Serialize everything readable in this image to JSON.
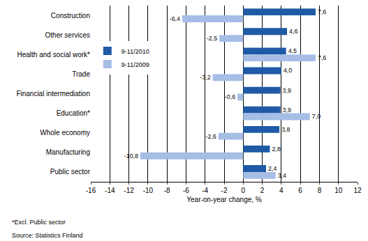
{
  "chart_data": {
    "type": "bar",
    "orientation": "horizontal",
    "categories": [
      "Construction",
      "Other services",
      "Health and social work*",
      "Trade",
      "Financial intermediation",
      "Education*",
      "Whole economy",
      "Manufacturing",
      "Public sector"
    ],
    "series": [
      {
        "name": "9-11/2010",
        "color": "#1f5aa6",
        "values": [
          7.6,
          4.6,
          4.5,
          4.0,
          3.9,
          3.9,
          3.8,
          2.8,
          2.4
        ],
        "value_labels": [
          "7,6",
          "4,6",
          "4,5",
          "4,0",
          "3,9",
          "3,9",
          "3,8",
          "2,8",
          "2,4"
        ]
      },
      {
        "name": "9-11/2009",
        "color": "#a6bde6",
        "values": [
          -6.4,
          -2.5,
          7.6,
          -3.2,
          -0.6,
          7.0,
          -2.6,
          -10.8,
          3.4
        ],
        "value_labels": [
          "-6,4",
          "-2,5",
          "7,6",
          "-3,2",
          "-0,6",
          "7,0",
          "-2,6",
          "-10,8",
          "3,4"
        ]
      }
    ],
    "xlabel": "Year-on-year change, %",
    "xlim": [
      -16,
      12
    ],
    "xticks": [
      -16,
      -14,
      -12,
      -10,
      -8,
      -6,
      -4,
      -2,
      0,
      2,
      4,
      6,
      8,
      10,
      12
    ],
    "grid": true,
    "legend": "upper left",
    "data_labels": true,
    "annotations": [
      "*Excl. Public sector",
      "Source: Statistics Finland"
    ]
  }
}
